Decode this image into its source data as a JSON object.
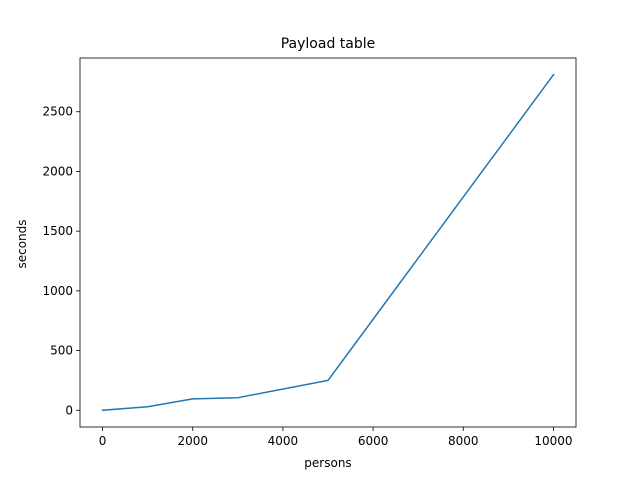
{
  "chart_data": {
    "type": "line",
    "title": "Payload table",
    "xlabel": "persons",
    "ylabel": "seconds",
    "xlim": [
      -500,
      10500
    ],
    "ylim": [
      -140,
      2950
    ],
    "x_ticks": [
      0,
      2000,
      4000,
      6000,
      8000,
      10000
    ],
    "y_ticks": [
      0,
      500,
      1000,
      1500,
      2000,
      2500
    ],
    "x_tick_labels": [
      "0",
      "2000",
      "4000",
      "6000",
      "8000",
      "10000"
    ],
    "y_tick_labels": [
      "0",
      "500",
      "1000",
      "1500",
      "2000",
      "2500"
    ],
    "grid": false,
    "series": [
      {
        "color": "#1f77b4",
        "x": [
          0,
          1000,
          2000,
          3000,
          5000,
          10000
        ],
        "y": [
          0,
          30,
          95,
          105,
          250,
          2810
        ]
      }
    ]
  }
}
